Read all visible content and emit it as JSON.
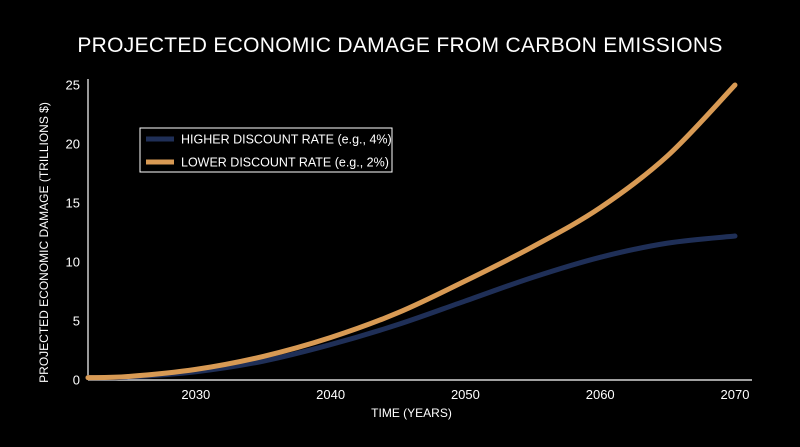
{
  "chart_data": {
    "type": "line",
    "title": "PROJECTED ECONOMIC DAMAGE FROM CARBON EMISSIONS",
    "xlabel": "TIME (YEARS)",
    "ylabel": "PROJECTED ECONOMIC DAMAGE (TRILLIONS $)",
    "xlim": [
      2022,
      2070
    ],
    "ylim": [
      0,
      25
    ],
    "xticks": [
      2030,
      2040,
      2050,
      2060,
      2070
    ],
    "yticks": [
      0,
      5,
      10,
      15,
      20,
      25
    ],
    "grid": false,
    "legend_position": "top-left",
    "series": [
      {
        "name": "HIGHER DISCOUNT RATE (e.g., 4%)",
        "color": "#1f2f57",
        "x": [
          2022,
          2025,
          2030,
          2035,
          2040,
          2045,
          2050,
          2055,
          2060,
          2065,
          2070
        ],
        "y": [
          0.2,
          0.25,
          0.7,
          1.6,
          3.0,
          4.7,
          6.7,
          8.7,
          10.4,
          11.6,
          12.2
        ]
      },
      {
        "name": "LOWER DISCOUNT RATE (e.g., 2%)",
        "color": "#d89a54",
        "x": [
          2022,
          2025,
          2030,
          2035,
          2040,
          2045,
          2050,
          2055,
          2060,
          2065,
          2070
        ],
        "y": [
          0.2,
          0.3,
          0.9,
          2.0,
          3.6,
          5.7,
          8.4,
          11.3,
          14.6,
          19.0,
          25.0
        ]
      }
    ]
  }
}
